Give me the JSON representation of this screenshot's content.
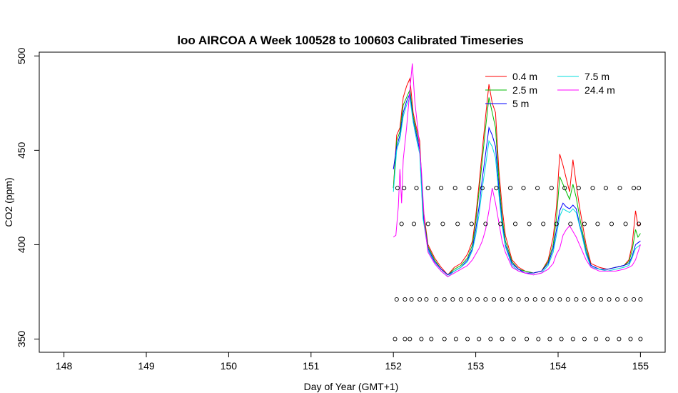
{
  "chart_data": {
    "type": "line",
    "title": "loo AIRCOA A  Week 100528 to 100603  Calibrated Timeseries",
    "xlabel": "Day of Year (GMT+1)",
    "ylabel": "CO2 (ppm)",
    "xlim": [
      147.7,
      155.3
    ],
    "ylim": [
      343,
      502
    ],
    "xticks": [
      148,
      149,
      150,
      151,
      152,
      153,
      154,
      155
    ],
    "yticks": [
      350,
      400,
      450,
      500
    ],
    "legend_position": "top-right",
    "series": [
      {
        "name": "0.4 m",
        "color": "#ff0000",
        "x": [
          152.0,
          152.04,
          152.08,
          152.12,
          152.16,
          152.2,
          152.24,
          152.28,
          152.32,
          152.36,
          152.42,
          152.5,
          152.58,
          152.66,
          152.74,
          152.82,
          152.9,
          152.96,
          153.0,
          153.04,
          153.08,
          153.12,
          153.16,
          153.2,
          153.24,
          153.28,
          153.32,
          153.36,
          153.44,
          153.52,
          153.6,
          153.7,
          153.8,
          153.88,
          153.94,
          153.98,
          154.02,
          154.06,
          154.1,
          154.14,
          154.18,
          154.22,
          154.26,
          154.3,
          154.34,
          154.4,
          154.5,
          154.6,
          154.7,
          154.8,
          154.86,
          154.9,
          154.94,
          154.97,
          155.0
        ],
        "y": [
          430,
          458,
          462,
          478,
          484,
          488,
          470,
          462,
          455,
          420,
          400,
          393,
          388,
          384,
          388,
          390,
          395,
          402,
          415,
          432,
          450,
          468,
          485,
          475,
          470,
          440,
          420,
          405,
          392,
          388,
          386,
          385,
          386,
          392,
          404,
          420,
          448,
          442,
          435,
          428,
          445,
          432,
          420,
          410,
          400,
          390,
          388,
          387,
          388,
          389,
          392,
          400,
          418,
          410,
          411
        ]
      },
      {
        "name": "2.5 m",
        "color": "#00bb00",
        "x": [
          152.0,
          152.04,
          152.08,
          152.12,
          152.16,
          152.2,
          152.24,
          152.28,
          152.32,
          152.36,
          152.42,
          152.5,
          152.58,
          152.66,
          152.74,
          152.82,
          152.9,
          152.96,
          153.0,
          153.04,
          153.08,
          153.12,
          153.16,
          153.2,
          153.24,
          153.28,
          153.32,
          153.36,
          153.44,
          153.52,
          153.6,
          153.7,
          153.8,
          153.88,
          153.94,
          153.98,
          154.02,
          154.06,
          154.1,
          154.14,
          154.18,
          154.22,
          154.26,
          154.3,
          154.34,
          154.4,
          154.5,
          154.6,
          154.7,
          154.8,
          154.86,
          154.9,
          154.94,
          154.97,
          155.0
        ],
        "y": [
          430,
          455,
          460,
          474,
          478,
          482,
          468,
          460,
          452,
          418,
          399,
          392,
          387,
          384,
          387,
          389,
          393,
          400,
          412,
          428,
          445,
          462,
          478,
          470,
          462,
          435,
          415,
          402,
          391,
          387,
          386,
          385,
          386,
          391,
          400,
          414,
          436,
          432,
          428,
          424,
          432,
          425,
          415,
          406,
          398,
          389,
          387,
          387,
          388,
          389,
          391,
          397,
          408,
          404,
          406
        ]
      },
      {
        "name": "5 m",
        "color": "#0000ff",
        "x": [
          152.0,
          152.04,
          152.08,
          152.12,
          152.16,
          152.2,
          152.24,
          152.28,
          152.32,
          152.36,
          152.42,
          152.5,
          152.58,
          152.66,
          152.74,
          152.82,
          152.9,
          152.96,
          153.0,
          153.04,
          153.08,
          153.12,
          153.16,
          153.2,
          153.24,
          153.28,
          153.32,
          153.36,
          153.44,
          153.52,
          153.6,
          153.7,
          153.8,
          153.88,
          153.94,
          153.98,
          154.02,
          154.06,
          154.1,
          154.14,
          154.18,
          154.22,
          154.26,
          154.3,
          154.34,
          154.4,
          154.5,
          154.6,
          154.7,
          154.8,
          154.86,
          154.9,
          154.94,
          154.97,
          155.0
        ],
        "y": [
          440,
          452,
          458,
          470,
          476,
          480,
          466,
          458,
          450,
          416,
          398,
          391,
          387,
          384,
          386,
          388,
          392,
          398,
          408,
          420,
          435,
          448,
          462,
          458,
          452,
          430,
          412,
          400,
          390,
          387,
          385,
          385,
          386,
          390,
          398,
          408,
          418,
          422,
          420,
          419,
          421,
          419,
          411,
          404,
          396,
          389,
          387,
          387,
          388,
          389,
          390,
          394,
          400,
          401,
          402
        ]
      },
      {
        "name": "7.5 m",
        "color": "#00dddd",
        "x": [
          152.0,
          152.04,
          152.08,
          152.12,
          152.16,
          152.2,
          152.24,
          152.28,
          152.32,
          152.36,
          152.42,
          152.5,
          152.58,
          152.66,
          152.74,
          152.82,
          152.9,
          152.96,
          153.0,
          153.04,
          153.08,
          153.12,
          153.16,
          153.2,
          153.24,
          153.28,
          153.32,
          153.36,
          153.44,
          153.52,
          153.6,
          153.7,
          153.8,
          153.88,
          153.94,
          153.98,
          154.02,
          154.06,
          154.1,
          154.14,
          154.18,
          154.22,
          154.26,
          154.3,
          154.34,
          154.4,
          154.5,
          154.6,
          154.7,
          154.8,
          154.86,
          154.9,
          154.94,
          154.97,
          155.0
        ],
        "y": [
          428,
          450,
          456,
          468,
          474,
          478,
          465,
          456,
          448,
          414,
          397,
          390,
          386,
          383,
          386,
          388,
          391,
          397,
          405,
          416,
          430,
          442,
          455,
          452,
          446,
          427,
          410,
          399,
          389,
          386,
          385,
          384,
          385,
          389,
          396,
          405,
          415,
          419,
          418,
          417,
          419,
          417,
          410,
          403,
          395,
          388,
          387,
          386,
          387,
          388,
          389,
          393,
          398,
          399,
          400
        ]
      },
      {
        "name": "24.4 m",
        "color": "#ff00ff",
        "x": [
          152.0,
          152.03,
          152.06,
          152.08,
          152.1,
          152.12,
          152.16,
          152.2,
          152.23,
          152.26,
          152.3,
          152.34,
          152.38,
          152.42,
          152.5,
          152.58,
          152.66,
          152.74,
          152.82,
          152.9,
          152.96,
          153.0,
          153.04,
          153.08,
          153.12,
          153.16,
          153.2,
          153.24,
          153.28,
          153.32,
          153.36,
          153.44,
          153.52,
          153.6,
          153.7,
          153.8,
          153.88,
          153.94,
          153.98,
          154.02,
          154.06,
          154.1,
          154.14,
          154.18,
          154.22,
          154.26,
          154.3,
          154.34,
          154.4,
          154.5,
          154.6,
          154.7,
          154.8,
          154.86,
          154.9,
          154.94,
          154.97,
          155.0
        ],
        "y": [
          404,
          405,
          420,
          440,
          422,
          445,
          462,
          482,
          496,
          476,
          460,
          440,
          410,
          396,
          390,
          386,
          383,
          385,
          387,
          389,
          392,
          395,
          398,
          402,
          408,
          418,
          430,
          422,
          412,
          402,
          396,
          388,
          386,
          385,
          384,
          385,
          387,
          390,
          395,
          398,
          405,
          408,
          410,
          407,
          404,
          400,
          396,
          392,
          388,
          386,
          386,
          386,
          387,
          388,
          389,
          392,
          396,
          400
        ]
      }
    ],
    "markers": {
      "shape": "circle",
      "levels": [
        {
          "y": 430,
          "x": [
            152.05,
            152.13,
            152.28,
            152.42,
            152.58,
            152.75,
            152.92,
            153.08,
            153.25,
            153.42,
            153.58,
            153.75,
            153.92,
            154.08,
            154.25,
            154.42,
            154.58,
            154.75,
            154.92,
            154.98
          ]
        },
        {
          "y": 411,
          "x": [
            152.1,
            152.25,
            152.42,
            152.6,
            152.78,
            152.95,
            153.12,
            153.3,
            153.48,
            153.65,
            153.82,
            153.98,
            154.15,
            154.32,
            154.48,
            154.65,
            154.82,
            154.98
          ]
        },
        {
          "y": 371,
          "x": [
            152.04,
            152.14,
            152.22,
            152.32,
            152.4,
            152.52,
            152.62,
            152.72,
            152.82,
            152.92,
            153.02,
            153.12,
            153.22,
            153.32,
            153.42,
            153.52,
            153.62,
            153.72,
            153.82,
            153.92,
            154.02,
            154.12,
            154.22,
            154.32,
            154.42,
            154.52,
            154.62,
            154.72,
            154.82,
            154.92,
            155.0
          ]
        },
        {
          "y": 350,
          "x": [
            152.02,
            152.14,
            152.2,
            152.34,
            152.46,
            152.62,
            152.76,
            152.9,
            153.04,
            153.18,
            153.32,
            153.46,
            153.62,
            153.76,
            153.9,
            154.04,
            154.18,
            154.32,
            154.46,
            154.6,
            154.74,
            154.88,
            155.0
          ]
        }
      ]
    }
  }
}
